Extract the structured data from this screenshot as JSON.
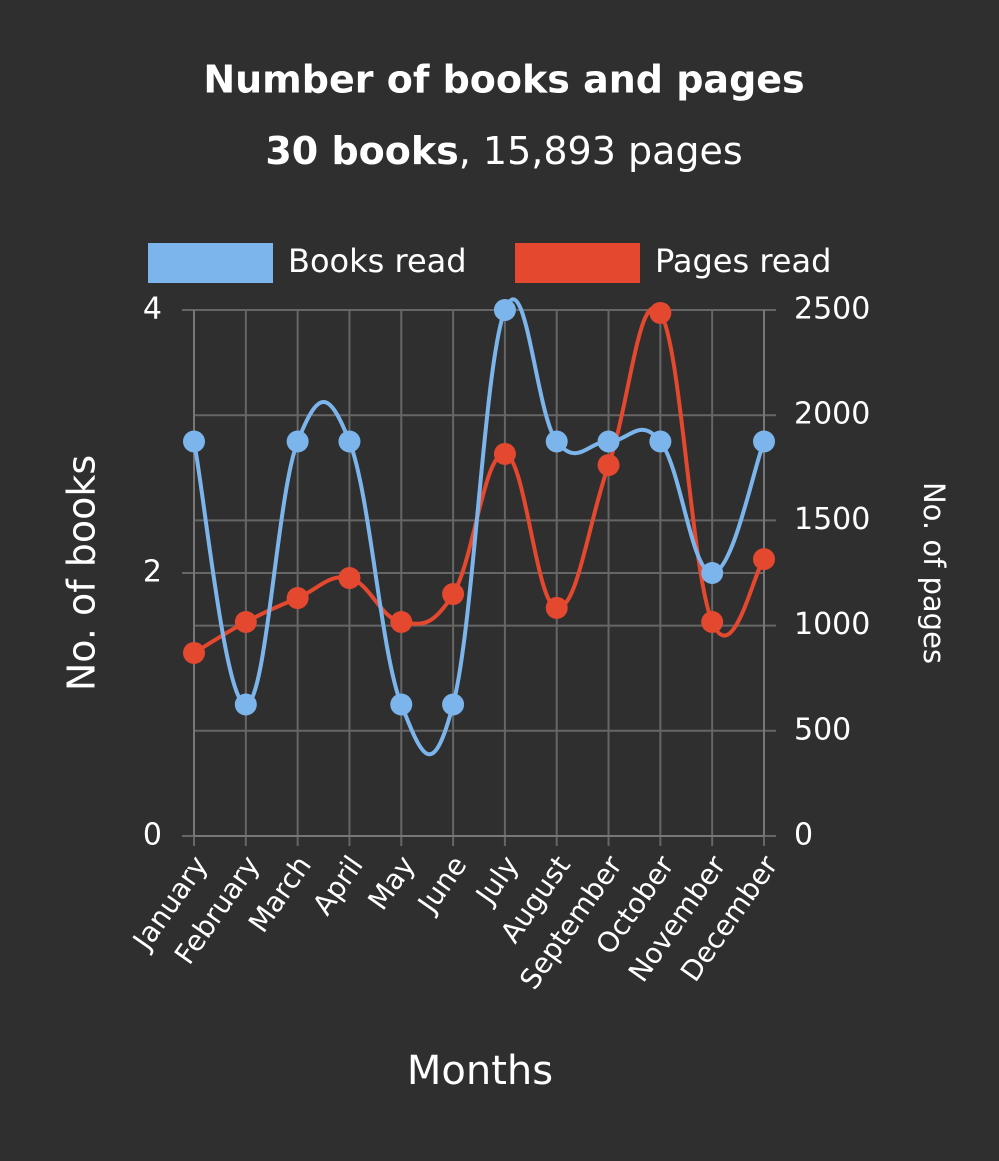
{
  "chart_data": {
    "type": "line",
    "title": "Number of books and pages",
    "subtitle": {
      "bold": "30 books",
      "rest": ", 15,893 pages"
    },
    "x_label": "Months",
    "y_label": "No. of books",
    "y2_label": "No. of pages",
    "categories": [
      "January",
      "February",
      "March",
      "April",
      "May",
      "June",
      "July",
      "August",
      "September",
      "October",
      "November",
      "December"
    ],
    "series": [
      {
        "name": "Books read",
        "color": "#7cb5ec",
        "values": [
          3,
          1,
          3,
          3,
          1,
          1,
          4,
          3,
          3,
          3,
          2,
          3
        ]
      },
      {
        "name": "Pages read",
        "color": "#e4482f",
        "axis": "y2",
        "values": [
          870,
          1017,
          1131,
          1226,
          1017,
          1150,
          1816,
          1084,
          1763,
          2486,
          1017,
          1316
        ]
      }
    ],
    "ylim": [
      0,
      4
    ],
    "yticks": [
      0,
      2,
      4
    ],
    "y2lim": [
      0,
      2500
    ],
    "y2ticks": [
      0,
      500,
      1000,
      1500,
      2000,
      2500
    ],
    "grid": true,
    "smooth": true,
    "legend": "top"
  }
}
